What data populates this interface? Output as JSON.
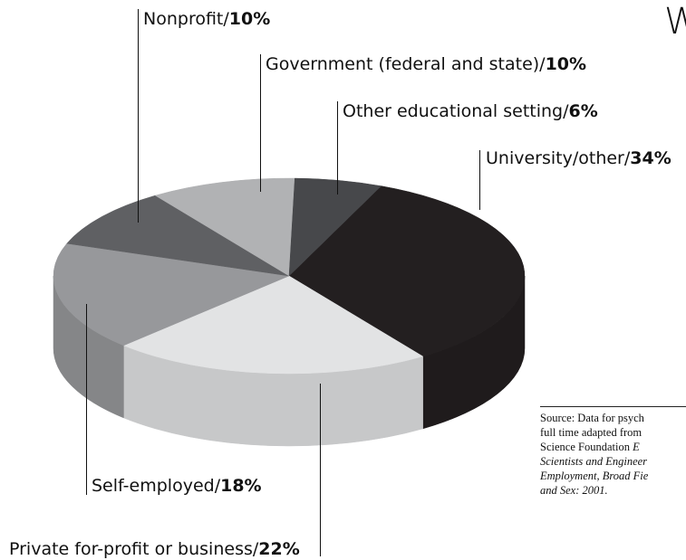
{
  "title_fragment": "W",
  "chart_data": {
    "type": "pie",
    "style": "3d",
    "slices": [
      {
        "label": "University/other",
        "value": 34,
        "color": "#231f20"
      },
      {
        "label": "Private for-profit or business",
        "value": 22,
        "color": "#e2e3e4"
      },
      {
        "label": "Self-employed",
        "value": 18,
        "color": "#97989b"
      },
      {
        "label": "Nonprofit",
        "value": 10,
        "color": "#5f6063"
      },
      {
        "label": "Government (federal and state)",
        "value": 10,
        "color": "#b1b2b4"
      },
      {
        "label": "Other educational setting",
        "value": 6,
        "color": "#47484b"
      }
    ],
    "display_labels": [
      {
        "text": "Nonprofit/",
        "pct": "10%"
      },
      {
        "text": "Government (federal and state)/",
        "pct": "10%"
      },
      {
        "text": "Other educational setting/",
        "pct": "6%"
      },
      {
        "text": "University/other/",
        "pct": "34%"
      },
      {
        "text": "Self-employed/",
        "pct": "18%"
      },
      {
        "text": "Private for-profit or business/",
        "pct": "22%"
      }
    ]
  },
  "source": {
    "line1": "Source: Data for psych",
    "line2": "full time adapted from",
    "line3_plain": "Science Foundation ",
    "line3_italic": "E",
    "line4": "Scientists and Engineer",
    "line5": "Employment, Broad Fie",
    "line6": "and Sex: 2001."
  }
}
